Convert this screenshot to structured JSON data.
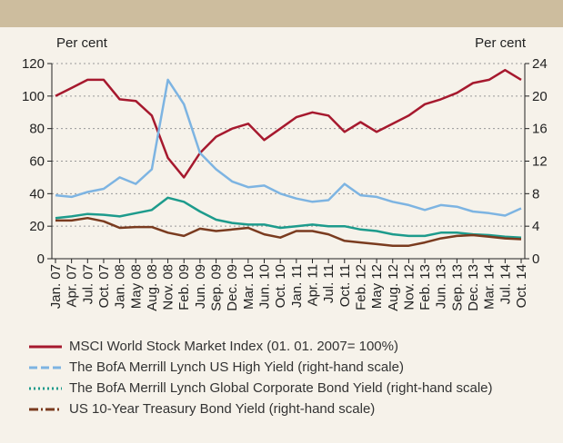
{
  "chart_data": {
    "type": "line",
    "y_label": "Per cent",
    "y2_label": "Per cent",
    "categories": [
      "Jan. 07",
      "Apr. 07",
      "Jul. 07",
      "Oct. 07",
      "Jan. 08",
      "May 08",
      "Aug. 08",
      "Nov. 08",
      "Feb. 09",
      "Jun. 09",
      "Sep. 09",
      "Dec. 09",
      "Mar. 10",
      "Jun. 10",
      "Oct. 10",
      "Jan. 11",
      "Apr. 11",
      "Jul. 11",
      "Oct. 11",
      "Feb. 12",
      "May 12",
      "Aug. 12",
      "Nov. 12",
      "Feb. 13",
      "Jun. 13",
      "Sep. 13",
      "Dec. 13",
      "Mar. 14",
      "Jul. 14",
      "Oct. 14"
    ],
    "ylim": [
      0,
      120
    ],
    "yticks": [
      0,
      20,
      40,
      60,
      80,
      100,
      120
    ],
    "y2lim": [
      0,
      24
    ],
    "y2ticks": [
      0,
      4,
      8,
      12,
      16,
      20,
      24
    ],
    "grid": true,
    "series": [
      {
        "name": "MSCI World Stock Market Index (01. 01. 2007= 100%)",
        "color": "#a6192e",
        "dash": "solid",
        "values": [
          100,
          105,
          110,
          110,
          98,
          97,
          88,
          62,
          50,
          65,
          75,
          80,
          83,
          73,
          80,
          87,
          90,
          88,
          78,
          84,
          78,
          83,
          88,
          95,
          98,
          102,
          108,
          110,
          116,
          110
        ]
      },
      {
        "name": "The BofA Merrill Lynch US High Yield (right-hand scale)",
        "color": "#7db4e2",
        "dash": "dashed",
        "axis": "y2",
        "values": [
          7.8,
          7.6,
          8.2,
          8.6,
          10,
          9.2,
          11,
          22,
          19,
          13,
          11,
          9.5,
          8.8,
          9.0,
          8.0,
          7.4,
          7.0,
          7.2,
          9.2,
          7.8,
          7.6,
          7.0,
          6.6,
          6.0,
          6.6,
          6.4,
          5.8,
          5.6,
          5.3,
          6.2
        ]
      },
      {
        "name": "The BofA Merrill Lynch Global Corporate Bond Yield (right-hand scale)",
        "color": "#1d9b8c",
        "dash": "dotted",
        "axis": "y2",
        "values": [
          5.0,
          5.2,
          5.5,
          5.4,
          5.2,
          5.6,
          6.0,
          7.5,
          7.0,
          5.8,
          4.8,
          4.4,
          4.2,
          4.2,
          3.8,
          4.0,
          4.2,
          4.0,
          4.0,
          3.6,
          3.4,
          3.0,
          2.8,
          2.8,
          3.2,
          3.2,
          3.0,
          2.9,
          2.7,
          2.6
        ]
      },
      {
        "name": "US 10-Year Treasury Bond Yield (right-hand scale)",
        "color": "#7a3b1f",
        "dash": "dashdot",
        "axis": "y2",
        "values": [
          4.7,
          4.7,
          5.0,
          4.6,
          3.8,
          3.9,
          3.9,
          3.2,
          2.8,
          3.7,
          3.4,
          3.6,
          3.8,
          3.0,
          2.6,
          3.4,
          3.4,
          3.0,
          2.2,
          2.0,
          1.8,
          1.6,
          1.6,
          2.0,
          2.5,
          2.8,
          2.9,
          2.7,
          2.5,
          2.4
        ]
      }
    ]
  }
}
